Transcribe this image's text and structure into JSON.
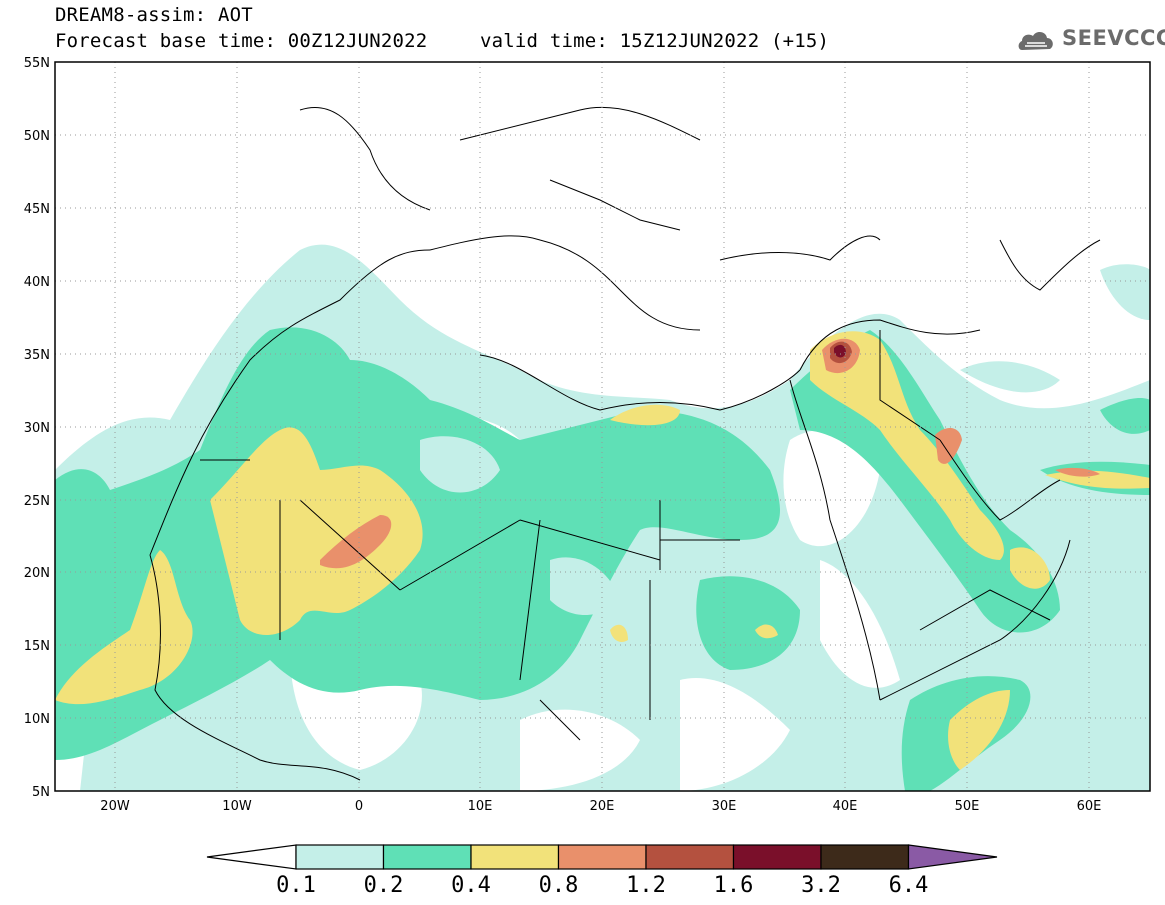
{
  "header": {
    "title": "DREAM8-assim: AOT",
    "base_time": "Forecast base time: 00Z12JUN2022",
    "valid_time": "valid time: 15Z12JUN2022 (+15)",
    "logo_text": "SEEVCCC"
  },
  "map": {
    "lat_labels": [
      "55N",
      "50N",
      "45N",
      "40N",
      "35N",
      "30N",
      "25N",
      "20N",
      "15N",
      "10N",
      "5N"
    ],
    "lon_labels": [
      "20W",
      "10W",
      "0",
      "10E",
      "20E",
      "30E",
      "40E",
      "50E",
      "60E"
    ],
    "lat_range": [
      5,
      55
    ],
    "lon_range": [
      -25,
      65
    ],
    "variable": "AOT"
  },
  "colorbar": {
    "labels": [
      "0.1",
      "0.2",
      "0.4",
      "0.8",
      "1.2",
      "1.6",
      "3.2",
      "6.4"
    ],
    "colors": [
      "#ffffff",
      "#c4efe8",
      "#5fe0b6",
      "#f2e27a",
      "#e9906b",
      "#b4513f",
      "#7a0f2a",
      "#3d2a1a",
      "#8a5aa5"
    ]
  }
}
